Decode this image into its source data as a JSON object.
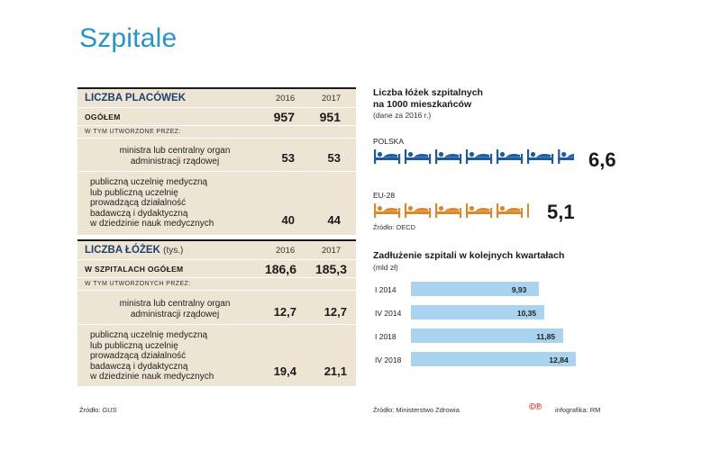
{
  "title": "Szpitale",
  "facilities": {
    "header": "LICZBA PLACÓWEK",
    "years": [
      "2016",
      "2017"
    ],
    "total": {
      "label": "OGÓŁEM",
      "values": [
        "957",
        "951"
      ]
    },
    "sub_label": "W TYM UTWORZONE PRZEZ:",
    "items": [
      {
        "label": "ministra lub centralny organ\nadministracji rządowej",
        "values": [
          "53",
          "53"
        ]
      },
      {
        "label": "publiczną uczelnię medyczną\nlub publiczną uczelnię\nprowadzącą działalność\nbadawczą i dydaktyczną\nw dziedzinie nauk medycznych",
        "values": [
          "40",
          "44"
        ]
      }
    ]
  },
  "beds_table": {
    "header": "LICZBA ŁÓŻEK",
    "unit": "(tys.)",
    "years": [
      "2016",
      "2017"
    ],
    "total": {
      "label": "W SZPITALACH OGÓŁEM",
      "values": [
        "186,6",
        "185,3"
      ]
    },
    "sub_label": "W TYM UTWORZONYCH PRZEZ:",
    "items": [
      {
        "label": "ministra lub centralny organ\nadministracji rządowej",
        "values": [
          "12,7",
          "12,7"
        ]
      },
      {
        "label": "publiczną uczelnię medyczną\nlub publiczną uczelnię\nprowadzącą działalność\nbadawczą i dydaktyczną\nw dziedzinie nauk medycznych",
        "values": [
          "19,4",
          "21,1"
        ]
      }
    ]
  },
  "beds_per_1000": {
    "title": "Liczba łóżek szpitalnych\nna 1000 mieszkańców",
    "subtitle": "(dane za 2016 r.)",
    "source": "Źródło: OECD",
    "poland": {
      "label": "POLSKA",
      "display": "6,6",
      "value": 6.6,
      "color": "#1e5aa0"
    },
    "eu": {
      "label": "EU-28",
      "display": "5,1",
      "value": 5.1,
      "color": "#d9892b"
    }
  },
  "debt": {
    "title": "Zadłużenie szpitali w kolejnych kwartałach",
    "unit": "(mld zł)",
    "color": "#a9d3ee"
  },
  "chart_data": [
    {
      "type": "bar",
      "title": "Zadłużenie szpitali w kolejnych kwartałach",
      "ylabel": "(mld zł)",
      "orientation": "horizontal",
      "categories": [
        "I 2014",
        "IV 2014",
        "I 2018",
        "IV 2018"
      ],
      "values": [
        9.93,
        10.35,
        11.85,
        12.84
      ],
      "labels": [
        "9,93",
        "10,35",
        "11,85",
        "12,84"
      ],
      "xlim": [
        0,
        14
      ]
    },
    {
      "type": "bar",
      "title": "Liczba łóżek szpitalnych na 1000 mieszkańców",
      "categories": [
        "POLSKA",
        "EU-28"
      ],
      "values": [
        6.6,
        5.1
      ],
      "labels": [
        "6,6",
        "5,1"
      ]
    }
  ],
  "footer": {
    "source_left": "Źródło: GUS",
    "source_right": "Źródło: Ministerstwo Zdrowia",
    "logo": "©℗",
    "credit": "infografika: RM"
  }
}
